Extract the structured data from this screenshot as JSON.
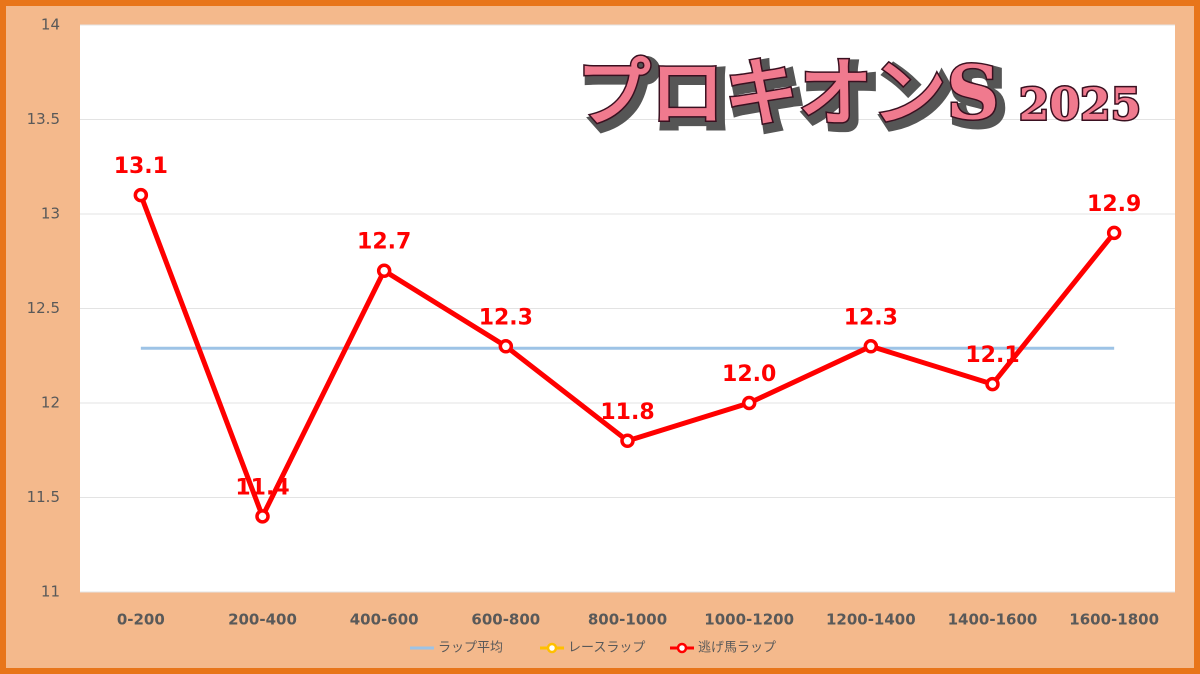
{
  "chart_data": {
    "type": "line",
    "title": "プロキオンS",
    "subtitle": "2025",
    "categories": [
      "0-200",
      "200-400",
      "400-600",
      "600-800",
      "800-1000",
      "1000-1200",
      "1200-1400",
      "1400-1600",
      "1600-1800"
    ],
    "ylim": [
      11,
      14
    ],
    "yticks": [
      11,
      11.5,
      12,
      12.5,
      13,
      13.5,
      14
    ],
    "grid": true,
    "legend": "bottom",
    "series": [
      {
        "name": "ラップ平均",
        "color": "#9dc3e6",
        "values": [
          12.29,
          12.29,
          12.29,
          12.29,
          12.29,
          12.29,
          12.29,
          12.29,
          12.29
        ]
      },
      {
        "name": "レースラップ",
        "color": "#ffc000",
        "values": [
          null,
          null,
          null,
          null,
          null,
          null,
          null,
          null,
          null
        ]
      },
      {
        "name": "逃げ馬ラップ",
        "color": "#ff0000",
        "values": [
          13.1,
          11.4,
          12.7,
          12.3,
          11.8,
          12.0,
          12.3,
          12.1,
          12.9
        ],
        "value_labels": [
          "13.1",
          "11.4",
          "12.7",
          "12.3",
          "11.8",
          "12.0",
          "12.3",
          "12.1",
          "12.9"
        ]
      }
    ]
  }
}
